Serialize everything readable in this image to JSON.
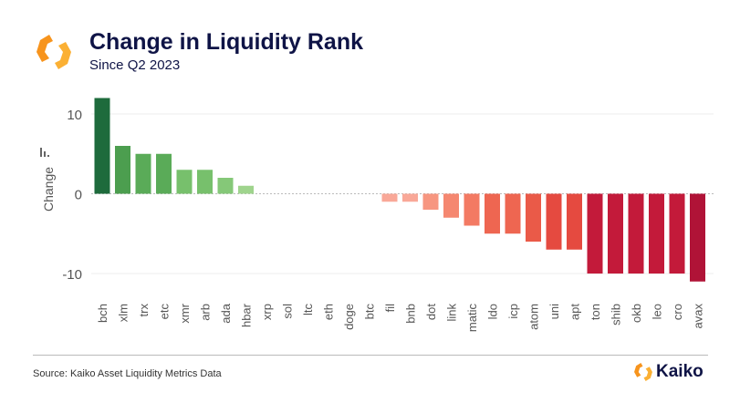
{
  "header": {
    "title": "Change in Liquidity Rank",
    "subtitle": "Since Q2 2023"
  },
  "footer": {
    "source": "Source: Kaiko Asset Liquidity Metrics Data",
    "brand": "Kaiko"
  },
  "chart_data": {
    "type": "bar",
    "title": "Change in Liquidity Rank",
    "subtitle": "Since Q2 2023",
    "xlabel": "",
    "ylabel": "Change",
    "ylim": [
      -12,
      13
    ],
    "yticks": [
      10,
      0,
      -10
    ],
    "grid": true,
    "categories": [
      "bch",
      "xlm",
      "trx",
      "etc",
      "xmr",
      "arb",
      "ada",
      "hbar",
      "xrp",
      "sol",
      "ltc",
      "eth",
      "doge",
      "btc",
      "fil",
      "bnb",
      "dot",
      "link",
      "matic",
      "ldo",
      "icp",
      "atom",
      "uni",
      "apt",
      "ton",
      "shib",
      "okb",
      "leo",
      "cro",
      "avax"
    ],
    "values": [
      12,
      6,
      5,
      5,
      3,
      3,
      2,
      1,
      0,
      0,
      0,
      0,
      0,
      0,
      -1,
      -1,
      -2,
      -3,
      -4,
      -5,
      -5,
      -6,
      -7,
      -7,
      -10,
      -10,
      -10,
      -10,
      -10,
      -11
    ],
    "colors": {
      "12": "#1e6b3c",
      "6": "#4c9e4f",
      "5": "#5aab58",
      "3": "#77c06c",
      "2": "#85c878",
      "1": "#9fd48d",
      "0": "#cccccc",
      "-1": "#f9a898",
      "-2": "#f79680",
      "-3": "#f58770",
      "-4": "#f37a63",
      "-5": "#ee6651",
      "-6": "#ea5a48",
      "-7": "#e54a40",
      "-10": "#c31a3a",
      "-11": "#b01337"
    }
  }
}
